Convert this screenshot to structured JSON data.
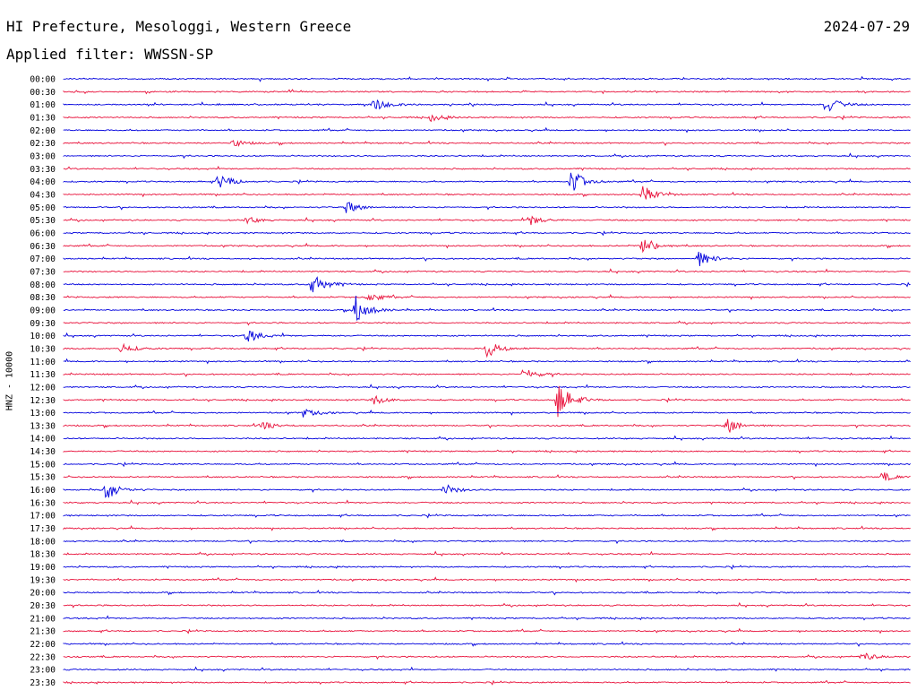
{
  "header": {
    "title": "HI Prefecture, Mesologgi, Western Greece",
    "date": "2024-07-29",
    "filter": "Applied filter: WWSSN-SP"
  },
  "chart_data": {
    "type": "line",
    "ylabel": "HNZ - 10000",
    "tick_labels": [
      "00:00",
      "00:30",
      "01:00",
      "01:30",
      "02:00",
      "02:30",
      "03:00",
      "03:30",
      "04:00",
      "04:30",
      "05:00",
      "05:30",
      "06:00",
      "06:30",
      "07:00",
      "07:30",
      "08:00",
      "08:30",
      "09:00",
      "09:30",
      "10:00",
      "10:30",
      "11:00",
      "11:30",
      "12:00",
      "12:30",
      "13:00",
      "13:30",
      "14:00",
      "14:30",
      "15:00",
      "15:30",
      "16:00",
      "16:30",
      "17:00",
      "17:30",
      "18:00",
      "18:30",
      "19:00",
      "19:30",
      "20:00",
      "20:30",
      "21:00",
      "21:30",
      "22:00",
      "22:30",
      "23:00",
      "23:30"
    ],
    "colors": [
      "#0000dd",
      "#e8103a"
    ],
    "trace_minutes": 30,
    "events": [
      {
        "row": 2,
        "minute": 11.0,
        "amp": 8
      },
      {
        "row": 2,
        "minute": 27.0,
        "amp": 10
      },
      {
        "row": 3,
        "minute": 13.0,
        "amp": 4
      },
      {
        "row": 5,
        "minute": 6.0,
        "amp": 4
      },
      {
        "row": 8,
        "minute": 5.5,
        "amp": 9
      },
      {
        "row": 8,
        "minute": 18.0,
        "amp": 14
      },
      {
        "row": 9,
        "minute": 20.5,
        "amp": 10
      },
      {
        "row": 10,
        "minute": 10.0,
        "amp": 7
      },
      {
        "row": 11,
        "minute": 6.5,
        "amp": 4
      },
      {
        "row": 11,
        "minute": 16.5,
        "amp": 6
      },
      {
        "row": 13,
        "minute": 20.5,
        "amp": 11
      },
      {
        "row": 14,
        "minute": 22.5,
        "amp": 9
      },
      {
        "row": 16,
        "minute": 8.8,
        "amp": 13
      },
      {
        "row": 17,
        "minute": 10.8,
        "amp": 6
      },
      {
        "row": 18,
        "minute": 10.3,
        "amp": 18
      },
      {
        "row": 20,
        "minute": 6.5,
        "amp": 8
      },
      {
        "row": 21,
        "minute": 15.0,
        "amp": 10
      },
      {
        "row": 21,
        "minute": 2.0,
        "amp": 6
      },
      {
        "row": 23,
        "minute": 16.3,
        "amp": 7
      },
      {
        "row": 25,
        "minute": 17.5,
        "amp": 20
      },
      {
        "row": 25,
        "minute": 11.0,
        "amp": 5
      },
      {
        "row": 26,
        "minute": 8.5,
        "amp": 5
      },
      {
        "row": 27,
        "minute": 23.5,
        "amp": 9
      },
      {
        "row": 27,
        "minute": 7.0,
        "amp": 5
      },
      {
        "row": 31,
        "minute": 29.0,
        "amp": 5
      },
      {
        "row": 32,
        "minute": 1.5,
        "amp": 12
      },
      {
        "row": 32,
        "minute": 13.5,
        "amp": 6
      },
      {
        "row": 45,
        "minute": 28.3,
        "amp": 5
      }
    ]
  }
}
